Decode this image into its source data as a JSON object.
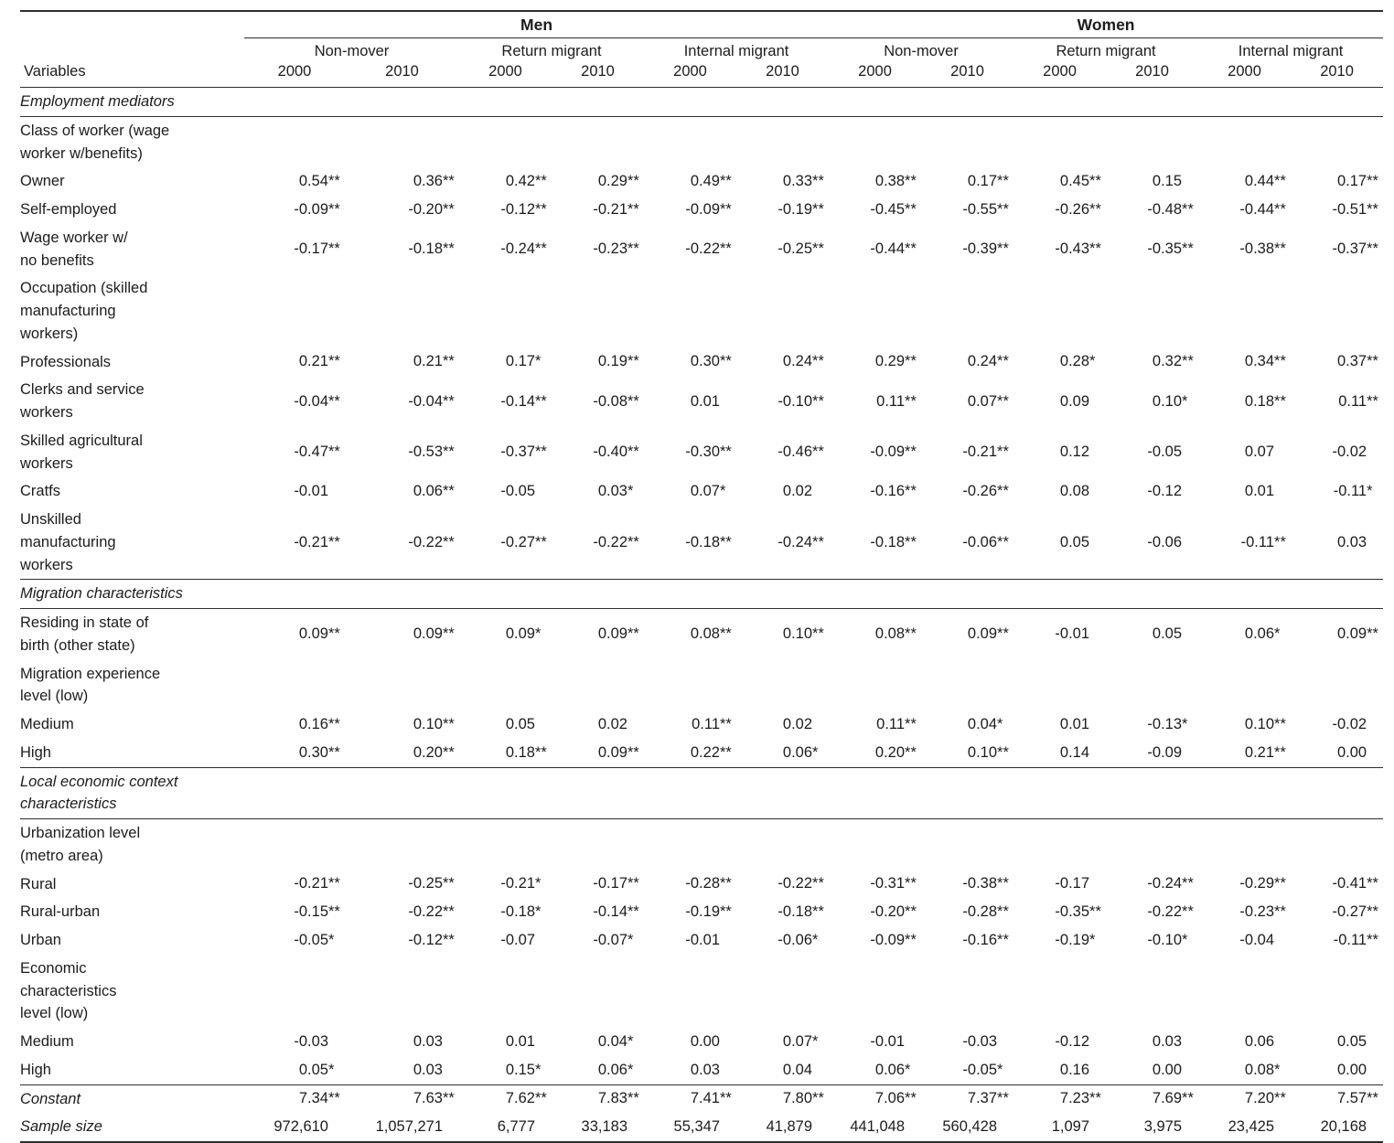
{
  "table": {
    "variables_header": "Variables",
    "gender_headers": [
      "Men",
      "Women"
    ],
    "migrant_groups": [
      "Non-mover",
      "Return migrant",
      "Internal migrant",
      "Non-mover",
      "Return migrant",
      "Internal migrant"
    ],
    "years": [
      "2000",
      "2010",
      "2000",
      "2010",
      "2000",
      "2010",
      "2000",
      "2010",
      "2000",
      "2010",
      "2000",
      "2010"
    ],
    "rows": [
      {
        "label": "Employment mediators",
        "indent": 0,
        "italic": true,
        "section": true
      },
      {
        "label": "Class of worker (wage\nworker w/benefits)",
        "indent": 1,
        "italic": false
      },
      {
        "label": "Owner",
        "indent": 2,
        "italic": false,
        "values": [
          "0.54**",
          "0.36**",
          "0.42**",
          "0.29**",
          "0.49**",
          "0.33**",
          "0.38**",
          "0.17**",
          "0.45**",
          "0.15",
          "0.44**",
          "0.17**"
        ]
      },
      {
        "label": "Self-employed",
        "indent": 2,
        "italic": false,
        "values": [
          "-0.09**",
          "-0.20**",
          "-0.12**",
          "-0.21**",
          "-0.09**",
          "-0.19**",
          "-0.45**",
          "-0.55**",
          "-0.26**",
          "-0.48**",
          "-0.44**",
          "-0.51**"
        ]
      },
      {
        "label": "Wage worker w/\nno benefits",
        "indent": 2,
        "italic": false,
        "values": [
          "-0.17**",
          "-0.18**",
          "-0.24**",
          "-0.23**",
          "-0.22**",
          "-0.25**",
          "-0.44**",
          "-0.39**",
          "-0.43**",
          "-0.35**",
          "-0.38**",
          "-0.37**"
        ]
      },
      {
        "label": "Occupation (skilled\nmanufacturing\nworkers)",
        "indent": 1,
        "italic": false
      },
      {
        "label": "Professionals",
        "indent": 2,
        "italic": false,
        "values": [
          "0.21**",
          "0.21**",
          "0.17*",
          "0.19**",
          "0.30**",
          "0.24**",
          "0.29**",
          "0.24**",
          "0.28*",
          "0.32**",
          "0.34**",
          "0.37**"
        ]
      },
      {
        "label": "Clerks and service\nworkers",
        "indent": 2,
        "italic": false,
        "values": [
          "-0.04**",
          "-0.04**",
          "-0.14**",
          "-0.08**",
          "0.01",
          "-0.10**",
          "0.11**",
          "0.07**",
          "0.09",
          "0.10*",
          "0.18**",
          "0.11**"
        ]
      },
      {
        "label": "Skilled agricultural\nworkers",
        "indent": 2,
        "italic": false,
        "values": [
          "-0.47**",
          "-0.53**",
          "-0.37**",
          "-0.40**",
          "-0.30**",
          "-0.46**",
          "-0.09**",
          "-0.21**",
          "0.12",
          "-0.05",
          "0.07",
          "-0.02"
        ]
      },
      {
        "label": "Cratfs",
        "indent": 2,
        "italic": false,
        "values": [
          "-0.01",
          "0.06**",
          "-0.05",
          "0.03*",
          "0.07*",
          "0.02",
          "-0.16**",
          "-0.26**",
          "0.08",
          "-0.12",
          "0.01",
          "-0.11*"
        ]
      },
      {
        "label": "Unskilled\nmanufacturing\nworkers",
        "indent": 2,
        "italic": false,
        "values": [
          "-0.21**",
          "-0.22**",
          "-0.27**",
          "-0.22**",
          "-0.18**",
          "-0.24**",
          "-0.18**",
          "-0.06**",
          "0.05",
          "-0.06",
          "-0.11**",
          "0.03"
        ]
      },
      {
        "label": "Migration characteristics",
        "indent": 0,
        "italic": true,
        "section": true
      },
      {
        "label": "Residing in state of\nbirth (other state)",
        "indent": 1,
        "italic": false,
        "values": [
          "0.09**",
          "0.09**",
          "0.09*",
          "0.09**",
          "0.08**",
          "0.10**",
          "0.08**",
          "0.09**",
          "-0.01",
          "0.05",
          "0.06*",
          "0.09**"
        ]
      },
      {
        "label": "Migration experience\nlevel (low)",
        "indent": 1,
        "italic": false
      },
      {
        "label": "Medium",
        "indent": 2,
        "italic": false,
        "values": [
          "0.16**",
          "0.10**",
          "0.05",
          "0.02",
          "0.11**",
          "0.02",
          "0.11**",
          "0.04*",
          "0.01",
          "-0.13*",
          "0.10**",
          "-0.02"
        ]
      },
      {
        "label": "High",
        "indent": 2,
        "italic": false,
        "values": [
          "0.30**",
          "0.20**",
          "0.18**",
          "0.09**",
          "0.22**",
          "0.06*",
          "0.20**",
          "0.10**",
          "0.14",
          "-0.09",
          "0.21**",
          "0.00"
        ]
      },
      {
        "label": "Local economic context\ncharacteristics",
        "indent": 0,
        "italic": true,
        "section": true
      },
      {
        "label": "Urbanization level\n(metro area)",
        "indent": 1,
        "italic": false
      },
      {
        "label": "Rural",
        "indent": 2,
        "italic": false,
        "values": [
          "-0.21**",
          "-0.25**",
          "-0.21*",
          "-0.17**",
          "-0.28**",
          "-0.22**",
          "-0.31**",
          "-0.38**",
          "-0.17",
          "-0.24**",
          "-0.29**",
          "-0.41**"
        ]
      },
      {
        "label": "Rural-urban",
        "indent": 2,
        "italic": false,
        "values": [
          "-0.15**",
          "-0.22**",
          "-0.18*",
          "-0.14**",
          "-0.19**",
          "-0.18**",
          "-0.20**",
          "-0.28**",
          "-0.35**",
          "-0.22**",
          "-0.23**",
          "-0.27**"
        ]
      },
      {
        "label": "Urban",
        "indent": 2,
        "italic": false,
        "values": [
          "-0.05*",
          "-0.12**",
          "-0.07",
          "-0.07*",
          "-0.01",
          "-0.06*",
          "-0.09**",
          "-0.16**",
          "-0.19*",
          "-0.10*",
          "-0.04",
          "-0.11**"
        ]
      },
      {
        "label": "Economic\ncharacteristics\nlevel (low)",
        "indent": 1,
        "italic": false
      },
      {
        "label": "Medium",
        "indent": 2,
        "italic": false,
        "values": [
          "-0.03",
          "0.03",
          "0.01",
          "0.04*",
          "0.00",
          "0.07*",
          "-0.01",
          "-0.03",
          "-0.12",
          "0.03",
          "0.06",
          "0.05"
        ]
      },
      {
        "label": "High",
        "indent": 2,
        "italic": false,
        "values": [
          "0.05*",
          "0.03",
          "0.15*",
          "0.06*",
          "0.03",
          "0.04",
          "0.06*",
          "-0.05*",
          "0.16",
          "0.00",
          "0.08*",
          "0.00"
        ]
      },
      {
        "label": "Constant",
        "indent": 0,
        "italic": true,
        "ruleTop": true,
        "values": [
          "7.34**",
          "7.63**",
          "7.62**",
          "7.83**",
          "7.41**",
          "7.80**",
          "7.06**",
          "7.37**",
          "7.23**",
          "7.69**",
          "7.20**",
          "7.57**"
        ]
      },
      {
        "label": "Sample size",
        "indent": 0,
        "italic": true,
        "values": [
          "972,610",
          "1,057,271",
          "6,777",
          "33,183",
          "55,347",
          "41,879",
          "441,048",
          "560,428",
          "1,097",
          "3,975",
          "23,425",
          "20,168"
        ]
      }
    ]
  }
}
